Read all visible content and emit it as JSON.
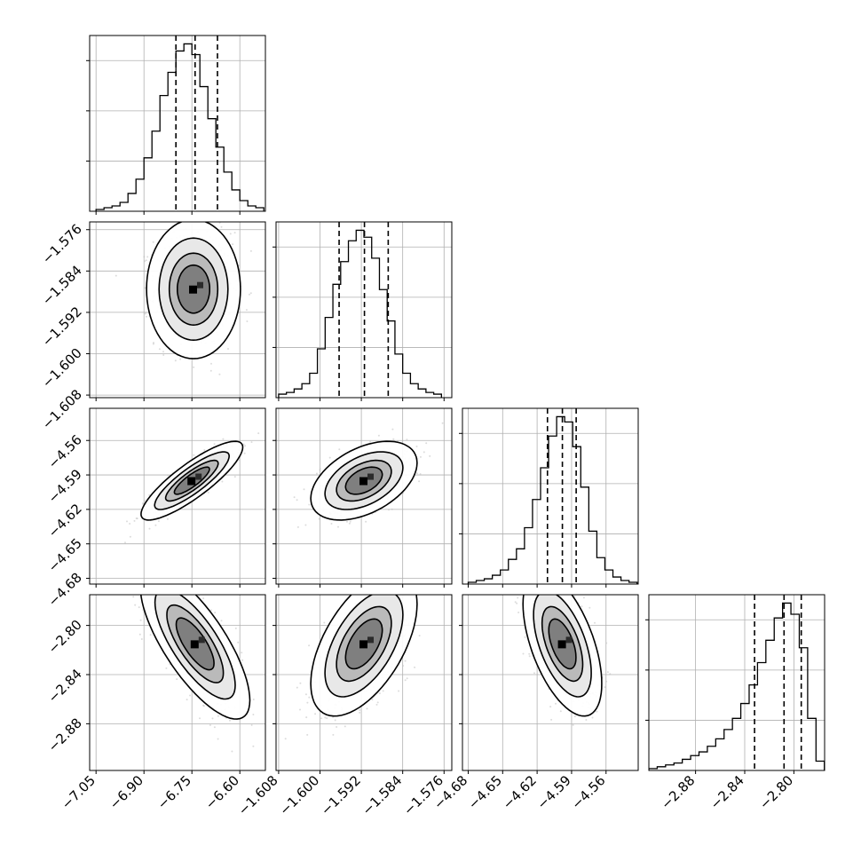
{
  "chart_data": {
    "type": "corner",
    "params": 4,
    "grid": true,
    "contour_levels": [
      0.95,
      0.8,
      0.55,
      0.3
    ],
    "hist_style": "step",
    "colors": {
      "line": "#000000",
      "grid": "#b0b0b0",
      "points": "#bfbfbf",
      "density": "#000000"
    },
    "ranges": [
      [
        -7.07,
        -6.52
      ],
      [
        -1.6085,
        -1.5745
      ],
      [
        -4.685,
        -4.532
      ],
      [
        -2.918,
        -2.775
      ]
    ],
    "ticks": [
      [
        -7.05,
        -6.9,
        -6.75,
        -6.6
      ],
      [
        -1.608,
        -1.6,
        -1.592,
        -1.584,
        -1.576
      ],
      [
        -4.68,
        -4.65,
        -4.62,
        -4.59,
        -4.56
      ],
      [
        -2.88,
        -2.84,
        -2.8
      ]
    ],
    "tick_labels": [
      [
        "−7.05",
        "−6.90",
        "−6.75",
        "−6.60"
      ],
      [
        "−1.608",
        "−1.600",
        "−1.592",
        "−1.584",
        "−1.576"
      ],
      [
        "−4.68",
        "−4.65",
        "−4.62",
        "−4.59",
        "−4.56"
      ],
      [
        "−2.88",
        "−2.84",
        "−2.80"
      ]
    ],
    "quantiles": [
      [
        -6.8,
        -6.74,
        -6.67
      ],
      [
        -1.5963,
        -1.5914,
        -1.5868
      ],
      [
        -4.611,
        -4.598,
        -4.586
      ],
      [
        -2.832,
        -2.808,
        -2.794
      ]
    ],
    "histograms": [
      {
        "bins": [
          -7.05,
          -7.025,
          -7.0,
          -6.975,
          -6.95,
          -6.925,
          -6.9,
          -6.875,
          -6.85,
          -6.825,
          -6.8,
          -6.775,
          -6.75,
          -6.725,
          -6.7,
          -6.675,
          -6.65,
          -6.625,
          -6.6,
          -6.575,
          -6.55,
          -6.525
        ],
        "counts": [
          1,
          2,
          3,
          5,
          10,
          18,
          30,
          45,
          65,
          78,
          90,
          94,
          88,
          70,
          52,
          36,
          22,
          12,
          6,
          3,
          2
        ]
      },
      {
        "bins": [
          -1.608,
          -1.6065,
          -1.605,
          -1.6035,
          -1.602,
          -1.6005,
          -1.599,
          -1.5975,
          -1.596,
          -1.5945,
          -1.593,
          -1.5915,
          -1.59,
          -1.5885,
          -1.587,
          -1.5855,
          -1.584,
          -1.5825,
          -1.581,
          -1.5795,
          -1.578,
          -1.5765
        ],
        "counts": [
          2,
          3,
          5,
          8,
          14,
          28,
          46,
          65,
          78,
          90,
          96,
          92,
          80,
          62,
          44,
          25,
          14,
          8,
          5,
          3,
          2
        ]
      },
      {
        "bins": [
          -4.68,
          -4.673,
          -4.666,
          -4.659,
          -4.652,
          -4.645,
          -4.638,
          -4.631,
          -4.624,
          -4.617,
          -4.61,
          -4.603,
          -4.596,
          -4.589,
          -4.582,
          -4.575,
          -4.568,
          -4.561,
          -4.554,
          -4.547,
          -4.54,
          -4.533
        ],
        "counts": [
          1,
          2,
          3,
          5,
          8,
          14,
          20,
          32,
          48,
          66,
          84,
          95,
          92,
          78,
          55,
          30,
          15,
          8,
          4,
          2,
          1
        ]
      },
      {
        "bins": [
          -2.918,
          -2.9112,
          -2.9044,
          -2.8976,
          -2.8908,
          -2.884,
          -2.8772,
          -2.8704,
          -2.8636,
          -2.8568,
          -2.85,
          -2.8432,
          -2.8364,
          -2.8296,
          -2.8228,
          -2.816,
          -2.8092,
          -2.8024,
          -2.7956,
          -2.7888,
          -2.782,
          -2.7752
        ],
        "counts": [
          1,
          2,
          3,
          4,
          6,
          8,
          10,
          13,
          17,
          22,
          28,
          36,
          46,
          58,
          70,
          82,
          90,
          84,
          66,
          28,
          5
        ]
      }
    ],
    "pairs": [
      {
        "x": 0,
        "y": 1,
        "mean": [
          -6.745,
          -1.5875
        ],
        "sd": [
          0.06,
          0.0055
        ],
        "corr": 0.0
      },
      {
        "x": 0,
        "y": 2,
        "mean": [
          -6.75,
          -4.595
        ],
        "sd": [
          0.065,
          0.014
        ],
        "corr": 0.85
      },
      {
        "x": 1,
        "y": 2,
        "mean": [
          -1.5915,
          -4.595
        ],
        "sd": [
          0.0042,
          0.014
        ],
        "corr": 0.45
      },
      {
        "x": 0,
        "y": 3,
        "mean": [
          -6.74,
          -2.815
        ],
        "sd": [
          0.07,
          0.025
        ],
        "corr": -0.75
      },
      {
        "x": 1,
        "y": 3,
        "mean": [
          -1.5915,
          -2.815
        ],
        "sd": [
          0.0042,
          0.024
        ],
        "corr": 0.55
      },
      {
        "x": 2,
        "y": 3,
        "mean": [
          -4.598,
          -2.815
        ],
        "sd": [
          0.014,
          0.024
        ],
        "corr": -0.55
      }
    ]
  }
}
